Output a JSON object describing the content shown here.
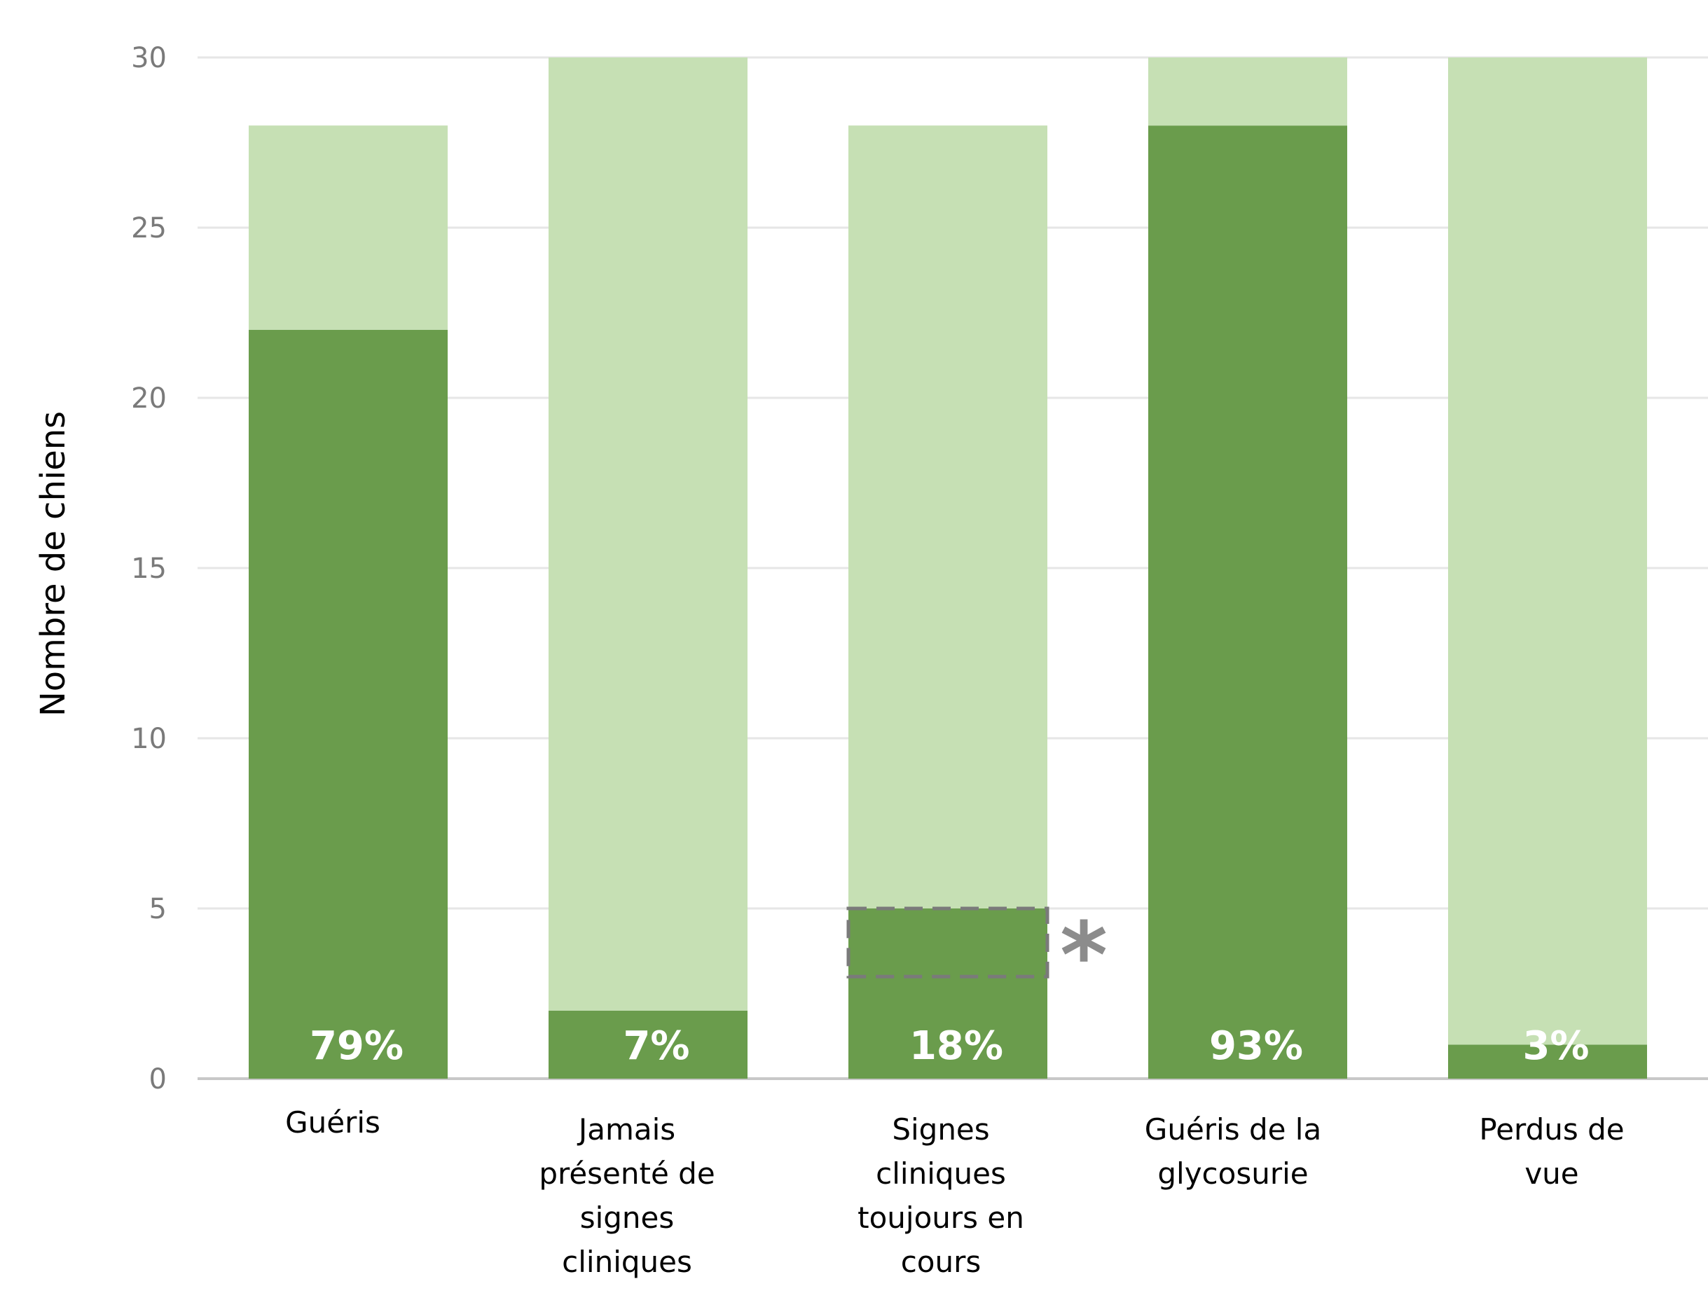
{
  "chart_data": {
    "type": "bar",
    "stacked": true,
    "ylabel": "Nombre de chiens",
    "xlabel": "",
    "ylim": [
      0,
      30
    ],
    "yticks": [
      0,
      5,
      10,
      15,
      20,
      25,
      30
    ],
    "grid": true,
    "categories": [
      [
        "Guéris"
      ],
      [
        "Jamais",
        "présenté de",
        "signes",
        "cliniques"
      ],
      [
        "Signes",
        "cliniques",
        "toujours en",
        "cours"
      ],
      [
        "Guéris de la",
        "glycosurie"
      ],
      [
        "Perdus de",
        "vue"
      ]
    ],
    "series": [
      {
        "values": [
          22,
          2,
          5,
          28,
          1
        ],
        "color": "#6a9c4c"
      },
      {
        "values": [
          6,
          28,
          23,
          2,
          29
        ],
        "color": "#c6e0b4"
      }
    ],
    "data_labels": [
      "79%",
      "7%",
      "18%",
      "93%",
      "3%"
    ],
    "annotation": {
      "category_index": 2,
      "y_from": 3,
      "y_to": 5,
      "marker": "*",
      "style": "dashed-box",
      "color": "#7a7a7a"
    }
  }
}
